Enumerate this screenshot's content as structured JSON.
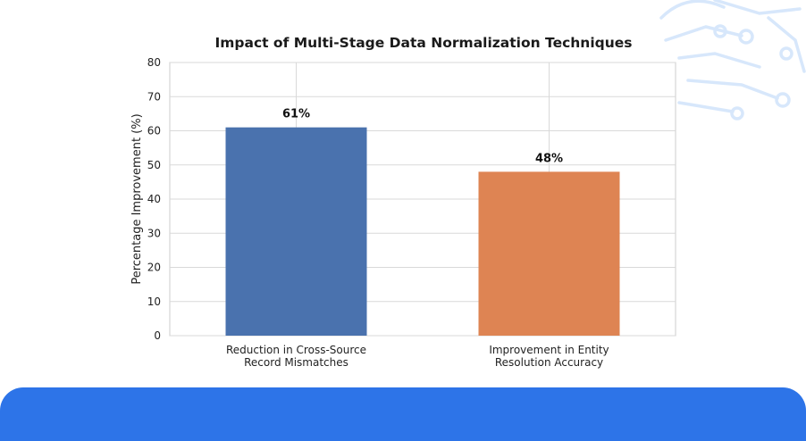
{
  "colors": {
    "series_1": "#4a72ae",
    "series_2": "#de8453",
    "band": "#2d74e8",
    "decoration": "#d7e7fb"
  },
  "chart_data": {
    "type": "bar",
    "title": "Impact of Multi-Stage Data Normalization Techniques",
    "xlabel": "",
    "ylabel": "Percentage Improvement (%)",
    "ylim": [
      0,
      80
    ],
    "yticks": [
      0,
      10,
      20,
      30,
      40,
      50,
      60,
      70,
      80
    ],
    "grid": true,
    "categories": [
      [
        "Reduction in Cross-Source",
        "Record Mismatches"
      ],
      [
        "Improvement in Entity",
        "Resolution Accuracy"
      ]
    ],
    "values": [
      61,
      48
    ],
    "data_labels": [
      "61%",
      "48%"
    ],
    "bar_colors": [
      "#4a72ae",
      "#de8453"
    ]
  }
}
